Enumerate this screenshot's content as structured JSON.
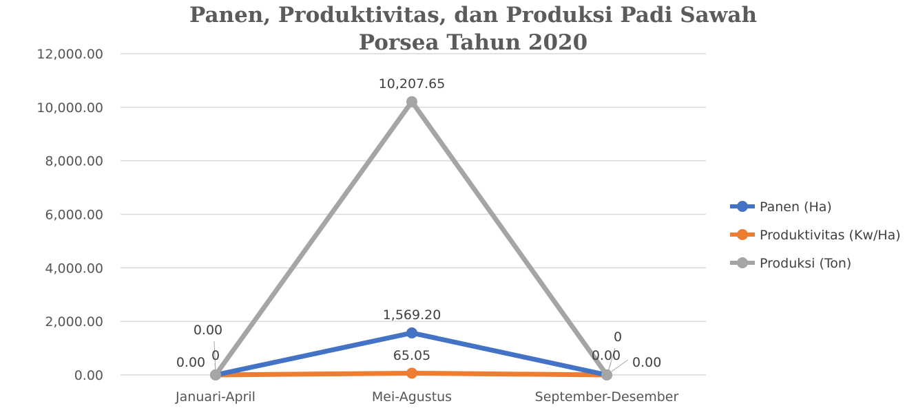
{
  "chart_data": {
    "type": "line",
    "title_lines": [
      "Panen, Produktivitas, dan Produksi Padi Sawah",
      "Porsea Tahun 2020"
    ],
    "categories": [
      "Januari-April",
      "Mei-Agustus",
      "September-Desember"
    ],
    "ylim": [
      0,
      12000
    ],
    "yticks": [
      "0.00",
      "2,000.00",
      "4,000.00",
      "6,000.00",
      "8,000.00",
      "10,000.00",
      "12,000.00"
    ],
    "grid": true,
    "legend_position": "right",
    "series": [
      {
        "name": "Panen (Ha)",
        "color": "#4472c4",
        "values": [
          0,
          1569.2,
          0
        ],
        "labels": [
          "0.00",
          "1,569.20",
          "0.00"
        ]
      },
      {
        "name": "Produktivitas (Kw/Ha)",
        "color": "#ed7d31",
        "values": [
          0,
          65.05,
          0
        ],
        "labels": [
          "0",
          "65.05",
          "0"
        ]
      },
      {
        "name": "Produksi (Ton)",
        "color": "#a5a5a5",
        "values": [
          0,
          10207.65,
          0
        ],
        "labels": [
          "0.00",
          "10,207.65",
          "0.00"
        ]
      }
    ]
  }
}
